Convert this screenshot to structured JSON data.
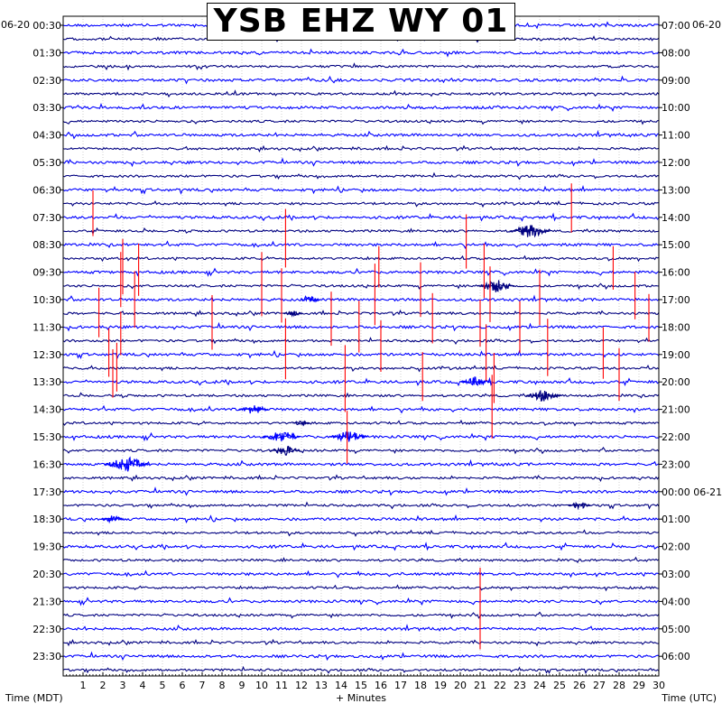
{
  "chart_data": {
    "type": "helicorder",
    "title": "YSB EHZ WY 01",
    "left_date": "06-20",
    "right_date": "06-20",
    "xlabel": "+ Minutes",
    "left_axis_label": "Time (MDT)",
    "right_axis_label": "Time (UTC)",
    "xlim": [
      0,
      30
    ],
    "x_ticks": [
      "1",
      "2",
      "3",
      "4",
      "5",
      "6",
      "7",
      "8",
      "9",
      "10",
      "11",
      "12",
      "13",
      "14",
      "15",
      "16",
      "17",
      "18",
      "19",
      "20",
      "21",
      "22",
      "23",
      "24",
      "25",
      "26",
      "27",
      "28",
      "29",
      "30"
    ],
    "left_ticks": [
      "00:30",
      "01:30",
      "02:30",
      "03:30",
      "04:30",
      "05:30",
      "06:30",
      "07:30",
      "08:30",
      "09:30",
      "10:30",
      "11:30",
      "12:30",
      "13:30",
      "14:30",
      "15:30",
      "16:30",
      "17:30",
      "18:30",
      "19:30",
      "20:30",
      "21:30",
      "22:30",
      "23:30"
    ],
    "right_ticks": [
      "07:00",
      "08:00",
      "09:00",
      "10:00",
      "11:00",
      "12:00",
      "13:00",
      "14:00",
      "15:00",
      "16:00",
      "17:00",
      "18:00",
      "19:00",
      "20:00",
      "21:00",
      "22:00",
      "23:00",
      "00:00 06-21",
      "01:00",
      "02:00",
      "03:00",
      "04:00",
      "05:00",
      "06:00"
    ],
    "trace_count": 48,
    "trace_colors": [
      "#0000ff",
      "#000080"
    ],
    "event_color": "#ff0000",
    "events": [
      {
        "row": 14,
        "minute": 1.5
      },
      {
        "row": 18,
        "minute": 3.0
      },
      {
        "row": 18,
        "minute": 3.8
      },
      {
        "row": 19,
        "minute": 2.9
      },
      {
        "row": 20,
        "minute": 3.6
      },
      {
        "row": 21,
        "minute": 1.8
      },
      {
        "row": 22,
        "minute": 7.5
      },
      {
        "row": 23,
        "minute": 2.9
      },
      {
        "row": 24,
        "minute": 2.3
      },
      {
        "row": 25,
        "minute": 2.7
      },
      {
        "row": 26,
        "minute": 2.5
      },
      {
        "row": 16,
        "minute": 11.2
      },
      {
        "row": 19,
        "minute": 10.0
      },
      {
        "row": 20,
        "minute": 11.0
      },
      {
        "row": 22,
        "minute": 13.5
      },
      {
        "row": 24,
        "minute": 11.2
      },
      {
        "row": 26,
        "minute": 14.2
      },
      {
        "row": 30,
        "minute": 14.3
      },
      {
        "row": 18,
        "minute": 15.9
      },
      {
        "row": 20,
        "minute": 15.7
      },
      {
        "row": 22,
        "minute": 14.9
      },
      {
        "row": 24,
        "minute": 16.0
      },
      {
        "row": 20,
        "minute": 18.0
      },
      {
        "row": 22,
        "minute": 18.6
      },
      {
        "row": 26,
        "minute": 18.1
      },
      {
        "row": 16,
        "minute": 20.3
      },
      {
        "row": 18,
        "minute": 21.2
      },
      {
        "row": 20,
        "minute": 21.5
      },
      {
        "row": 22,
        "minute": 21.0
      },
      {
        "row": 24,
        "minute": 21.3
      },
      {
        "row": 26,
        "minute": 21.7
      },
      {
        "row": 28,
        "minute": 21.6
      },
      {
        "row": 14,
        "minute": 25.6
      },
      {
        "row": 20,
        "minute": 24.0
      },
      {
        "row": 22,
        "minute": 23.0
      },
      {
        "row": 24,
        "minute": 24.4
      },
      {
        "row": 18,
        "minute": 27.7
      },
      {
        "row": 20,
        "minute": 28.8
      },
      {
        "row": 22,
        "minute": 29.5
      },
      {
        "row": 24,
        "minute": 27.2
      },
      {
        "row": 26,
        "minute": 28.0
      },
      {
        "row": 42,
        "minute": 21.0
      },
      {
        "row": 44,
        "minute": 21.0
      }
    ],
    "bursts": [
      {
        "row": 15,
        "minute": 23.5,
        "size": 1.6
      },
      {
        "row": 19,
        "minute": 21.8,
        "size": 1.5
      },
      {
        "row": 26,
        "minute": 20.8,
        "size": 1.2
      },
      {
        "row": 27,
        "minute": 24.2,
        "size": 1.4
      },
      {
        "row": 28,
        "minute": 9.6,
        "size": 1.2
      },
      {
        "row": 30,
        "minute": 11.0,
        "size": 1.5
      },
      {
        "row": 30,
        "minute": 14.4,
        "size": 1.5
      },
      {
        "row": 31,
        "minute": 11.2,
        "size": 1.2
      },
      {
        "row": 32,
        "minute": 3.2,
        "size": 1.8
      },
      {
        "row": 35,
        "minute": 26.0,
        "size": 0.9
      },
      {
        "row": 36,
        "minute": 2.5,
        "size": 0.9
      },
      {
        "row": 29,
        "minute": 12.0,
        "size": 0.7
      },
      {
        "row": 20,
        "minute": 12.5,
        "size": 0.8
      },
      {
        "row": 21,
        "minute": 11.6,
        "size": 0.8
      }
    ]
  }
}
